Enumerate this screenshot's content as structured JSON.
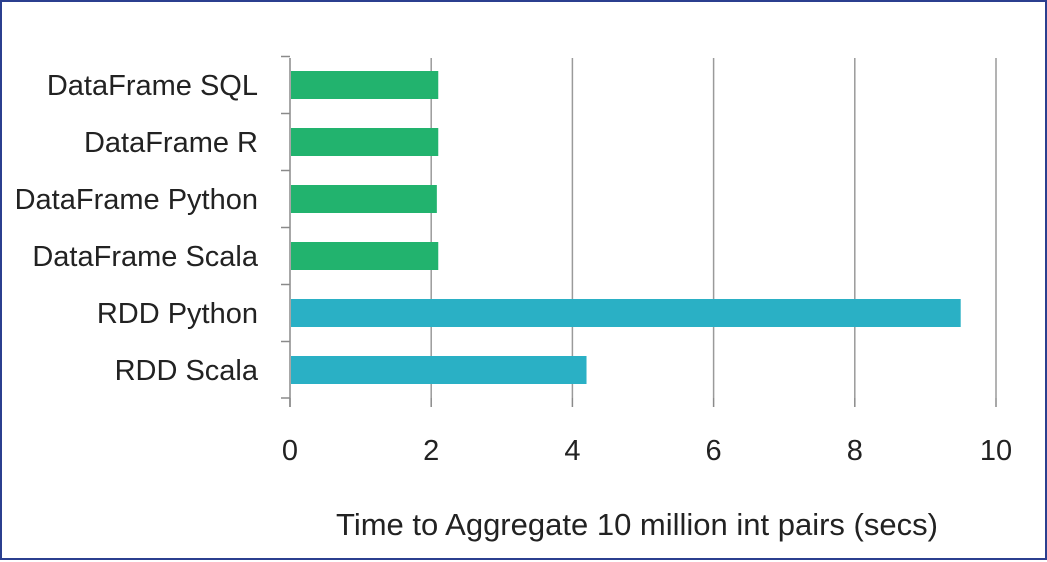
{
  "chart_data": {
    "type": "bar",
    "orientation": "horizontal",
    "title": "",
    "xlabel": "Time to Aggregate 10 million int pairs (secs)",
    "ylabel": "",
    "xlim": [
      0,
      10
    ],
    "xticks": [
      0,
      2,
      4,
      6,
      8,
      10
    ],
    "grid": true,
    "legend": "none",
    "categories": [
      "DataFrame SQL",
      "DataFrame R",
      "DataFrame Python",
      "DataFrame Scala",
      "RDD Python",
      "RDD Scala"
    ],
    "values": [
      2.1,
      2.1,
      2.08,
      2.1,
      9.5,
      4.2
    ],
    "colors": [
      "#22b36e",
      "#22b36e",
      "#22b36e",
      "#22b36e",
      "#2ab0c5",
      "#2ab0c5"
    ]
  }
}
